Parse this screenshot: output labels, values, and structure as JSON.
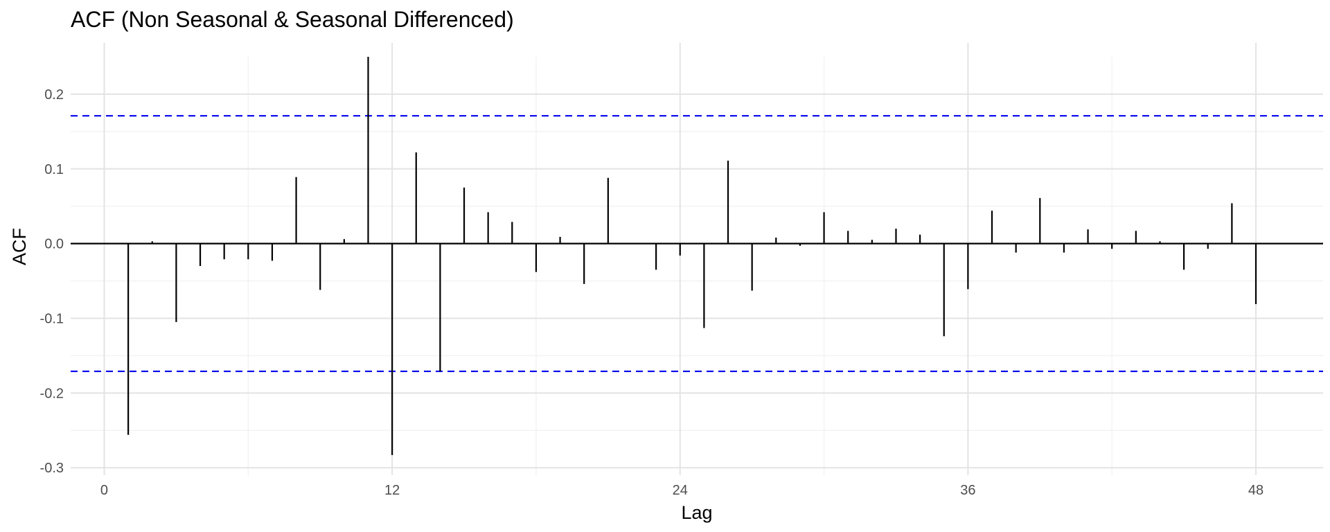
{
  "chart_data": {
    "type": "bar",
    "title": "ACF (Non Seasonal & Seasonal Differenced)",
    "xlabel": "Lag",
    "ylabel": "ACF",
    "xlim": [
      -1.4,
      50.8
    ],
    "ylim": [
      -0.31,
      0.25
    ],
    "x_ticks": [
      0,
      12,
      24,
      36,
      48
    ],
    "x_tick_labels": [
      "0",
      "12",
      "24",
      "36",
      "48"
    ],
    "y_ticks": [
      -0.3,
      -0.2,
      -0.1,
      0.0,
      0.1,
      0.2
    ],
    "y_tick_labels": [
      "-0.3",
      "-0.2",
      "-0.1",
      "0.0",
      "0.1",
      "0.2"
    ],
    "grid": true,
    "confidence_bounds": {
      "upper": 0.171,
      "lower": -0.171,
      "color": "#0000ee",
      "style": "dashed"
    },
    "lags": [
      1,
      2,
      3,
      4,
      5,
      6,
      7,
      8,
      9,
      10,
      11,
      12,
      13,
      14,
      15,
      16,
      17,
      18,
      19,
      20,
      21,
      22,
      23,
      24,
      25,
      26,
      27,
      28,
      29,
      30,
      31,
      32,
      33,
      34,
      35,
      36,
      37,
      38,
      39,
      40,
      41,
      42,
      43,
      44,
      45,
      46,
      47,
      48
    ],
    "values": [
      -0.256,
      0.003,
      -0.105,
      -0.03,
      -0.021,
      -0.021,
      -0.023,
      0.089,
      -0.062,
      0.006,
      0.25,
      -0.283,
      0.122,
      -0.171,
      0.075,
      0.042,
      0.029,
      -0.038,
      0.009,
      -0.054,
      0.088,
      0.001,
      -0.035,
      -0.016,
      -0.113,
      0.111,
      -0.063,
      0.008,
      -0.003,
      0.042,
      0.017,
      0.005,
      0.02,
      0.012,
      -0.124,
      -0.061,
      0.044,
      -0.012,
      0.061,
      -0.012,
      0.019,
      -0.007,
      0.017,
      0.003,
      -0.035,
      -0.007,
      0.054,
      -0.081
    ]
  }
}
